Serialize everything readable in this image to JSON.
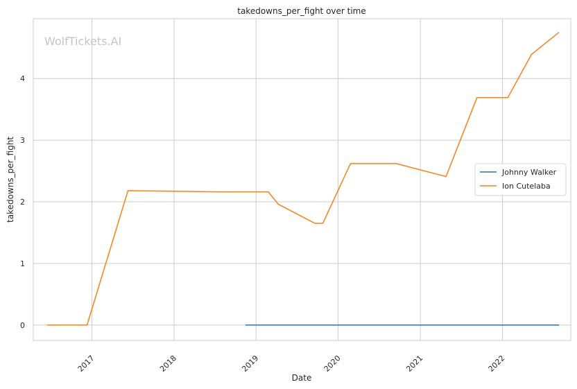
{
  "chart_data": {
    "type": "line",
    "title": "takedowns_per_fight over time",
    "xlabel": "Date",
    "ylabel": "takedowns_per_fight",
    "watermark": "WolfTickets.AI",
    "grid": true,
    "legend_position": "right",
    "x_ticks": [
      "2017",
      "2018",
      "2019",
      "2020",
      "2021",
      "2022"
    ],
    "y_ticks": [
      "0",
      "1",
      "2",
      "3",
      "4"
    ],
    "xlim": [
      "2016-04-15",
      "2022-11-01"
    ],
    "ylim": [
      -0.25,
      4.97
    ],
    "series": [
      {
        "name": "Johnny Walker",
        "color": "#1f77b4",
        "points": [
          {
            "x": "2018-11-15",
            "y": 0
          },
          {
            "x": "2022-09-10",
            "y": 0
          }
        ]
      },
      {
        "name": "Ion Cutelaba",
        "color": "#ff7f0e",
        "points": [
          {
            "x": "2016-06-15",
            "y": 0
          },
          {
            "x": "2016-12-10",
            "y": 0
          },
          {
            "x": "2017-06-10",
            "y": 2.18
          },
          {
            "x": "2018-08-10",
            "y": 2.16
          },
          {
            "x": "2019-02-25",
            "y": 2.16
          },
          {
            "x": "2019-04-10",
            "y": 1.96
          },
          {
            "x": "2019-09-20",
            "y": 1.65
          },
          {
            "x": "2019-10-25",
            "y": 1.65
          },
          {
            "x": "2020-02-25",
            "y": 2.62
          },
          {
            "x": "2020-09-15",
            "y": 2.62
          },
          {
            "x": "2021-04-25",
            "y": 2.41
          },
          {
            "x": "2021-09-10",
            "y": 3.69
          },
          {
            "x": "2022-01-25",
            "y": 3.69
          },
          {
            "x": "2022-05-10",
            "y": 4.39
          },
          {
            "x": "2022-09-10",
            "y": 4.75
          }
        ]
      }
    ]
  }
}
